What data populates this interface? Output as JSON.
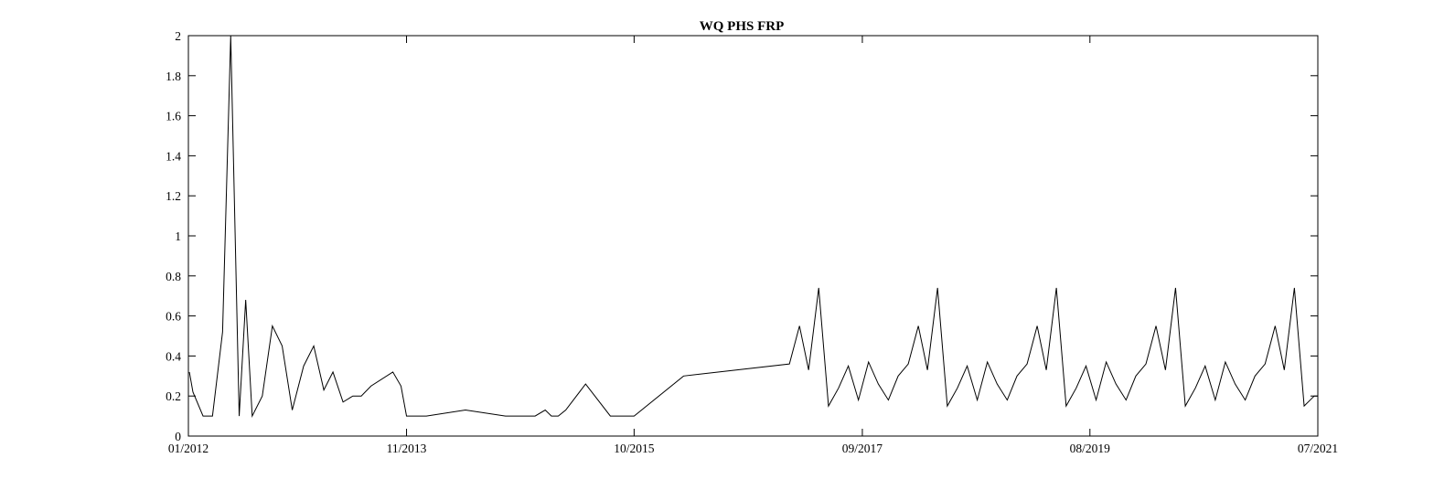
{
  "chart_data": {
    "type": "line",
    "title": "WQ PHS FRP",
    "xlabel": "",
    "ylabel": "",
    "ylim": [
      0,
      2
    ],
    "xlim": [
      "2012-01-01",
      "2021-07-01"
    ],
    "x_ticks": [
      "01/2012",
      "11/2013",
      "10/2015",
      "09/2017",
      "08/2019",
      "07/2021"
    ],
    "y_ticks": [
      "0",
      "0.2",
      "0.4",
      "0.6",
      "0.8",
      "1",
      "1.2",
      "1.4",
      "1.6",
      "1.8",
      "2"
    ],
    "grid": false,
    "legend": "none",
    "line_color": "#000000",
    "x": [
      "2012-01-04",
      "2012-01-15",
      "2012-02-15",
      "2012-03-15",
      "2012-04-15",
      "2012-05-10",
      "2012-06-05",
      "2012-06-25",
      "2012-07-15",
      "2012-08-15",
      "2012-09-15",
      "2012-10-15",
      "2012-11-15",
      "2012-12-20",
      "2013-01-20",
      "2013-02-20",
      "2013-03-20",
      "2013-04-20",
      "2013-05-20",
      "2013-06-15",
      "2013-07-15",
      "2013-09-20",
      "2013-10-15",
      "2013-11-01",
      "2014-01-01",
      "2014-05-01",
      "2014-09-01",
      "2014-12-01",
      "2015-01-01",
      "2015-01-20",
      "2015-02-10",
      "2015-03-05",
      "2015-05-05",
      "2015-07-20",
      "2015-10-01",
      "2016-03-01",
      "2017-01-20",
      "2017-02-20",
      "2017-03-20",
      "2017-04-20",
      "2017-05-20",
      "2017-06-20",
      "2017-07-20",
      "2017-08-20",
      "2017-09-20",
      "2017-10-20",
      "2017-11-20",
      "2017-12-20",
      "2018-01-20",
      "2018-02-20",
      "2018-03-20",
      "2018-04-20",
      "2018-05-20",
      "2018-06-20",
      "2018-07-20",
      "2018-08-20",
      "2018-09-20",
      "2018-10-20",
      "2018-11-20",
      "2018-12-20",
      "2019-01-20",
      "2019-02-20",
      "2019-03-20",
      "2019-04-20",
      "2019-05-20",
      "2019-06-20",
      "2019-07-20",
      "2019-08-20",
      "2019-09-20",
      "2019-10-20",
      "2019-11-20",
      "2019-12-20",
      "2020-01-20",
      "2020-02-20",
      "2020-03-20",
      "2020-04-20",
      "2020-05-20",
      "2020-06-20",
      "2020-07-20",
      "2020-08-20",
      "2020-09-20",
      "2020-10-20",
      "2020-11-20",
      "2020-12-20",
      "2021-01-20",
      "2021-02-20",
      "2021-03-20",
      "2021-04-20",
      "2021-05-20",
      "2021-06-20",
      "2021-07-01"
    ],
    "series": [
      {
        "values": [
          0.32,
          0.22,
          0.1,
          0.1,
          0.52,
          2.0,
          0.1,
          0.68,
          0.1,
          0.2,
          0.55,
          0.45,
          0.13,
          0.35,
          0.45,
          0.23,
          0.32,
          0.17,
          0.2,
          0.2,
          0.25,
          0.32,
          0.25,
          0.1,
          0.1,
          0.13,
          0.1,
          0.1,
          0.13,
          0.1,
          0.1,
          0.13,
          0.26,
          0.1,
          0.1,
          0.3,
          0.36,
          0.55,
          0.33,
          0.74,
          0.15,
          0.24,
          0.35,
          0.18,
          0.37,
          0.26,
          0.18,
          0.3,
          0.36,
          0.55,
          0.33,
          0.74,
          0.15,
          0.24,
          0.35,
          0.18,
          0.37,
          0.26,
          0.18,
          0.3,
          0.36,
          0.55,
          0.33,
          0.74,
          0.15,
          0.24,
          0.35,
          0.18,
          0.37,
          0.26,
          0.18,
          0.3,
          0.36,
          0.55,
          0.33,
          0.74,
          0.15,
          0.24,
          0.35,
          0.18,
          0.37,
          0.26,
          0.18,
          0.3,
          0.36,
          0.55,
          0.33,
          0.74,
          0.15,
          0.2,
          0.2
        ]
      }
    ]
  }
}
